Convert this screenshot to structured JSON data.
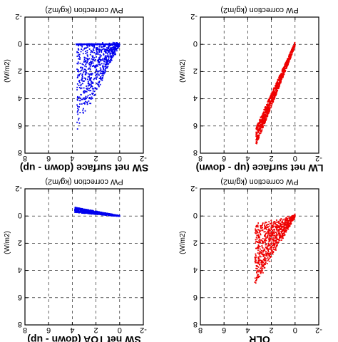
{
  "figure": {
    "flipped_upside_down": true,
    "colors": {
      "blue": "#0000ee",
      "red": "#ee0000",
      "axis": "#000000"
    }
  },
  "chart_data": [
    {
      "id": "sw-surface",
      "type": "scatter",
      "title": "SW net surface (down - up)",
      "xlabel": "PW correction (kg/m2)",
      "ylabel": "(W/m2)",
      "xlim": [
        -2,
        8
      ],
      "ylim": [
        -2,
        8
      ],
      "xticks": [
        "-2",
        "0",
        "2",
        "4",
        "6",
        "8"
      ],
      "yticks": [
        "-2",
        "0",
        "2",
        "4",
        "6",
        "8"
      ],
      "grid": true,
      "color": "#0000ee",
      "cloud": {
        "kind": "fan",
        "x_range": [
          0,
          3.6
        ],
        "slope_min": 0,
        "slope_max": 1.75,
        "n": 650,
        "baseline_x_max": 3.7,
        "baseline_n": 220
      }
    },
    {
      "id": "lw-surface",
      "type": "scatter",
      "title": "LW net surface (up - down)",
      "xlabel": "PW correction (kg/m2)",
      "ylabel": "(W/m2)",
      "xlim": [
        -2,
        8
      ],
      "ylim": [
        -2,
        8
      ],
      "xticks": [
        "-2",
        "0",
        "2",
        "4",
        "6",
        "8"
      ],
      "yticks": [
        "-2",
        "0",
        "2",
        "4",
        "6",
        "8"
      ],
      "grid": true,
      "color": "#ee0000",
      "cloud": {
        "kind": "band",
        "x_range": [
          0,
          3.3
        ],
        "slope": 2.05,
        "spread": 0.45,
        "n": 900
      }
    },
    {
      "id": "sw-toa",
      "type": "scatter",
      "title": "SW net TOA (down - up)",
      "xlabel": "PW correction (kg/m2)",
      "ylabel": "(W/m2)",
      "xlim": [
        -2,
        8
      ],
      "ylim": [
        -2,
        8
      ],
      "xticks": [
        "-2",
        "0",
        "2",
        "4",
        "6",
        "8"
      ],
      "yticks": [
        "-2",
        "0",
        "2",
        "4",
        "6",
        "8"
      ],
      "grid": true,
      "color": "#0000ee",
      "cloud": {
        "kind": "negative",
        "x_range": [
          0,
          3.8
        ],
        "slope": -0.12,
        "spread": 0.12,
        "n": 700
      }
    },
    {
      "id": "olr",
      "type": "scatter",
      "title": "OLR",
      "xlabel": "PW correction (kg/m2)",
      "ylabel": "(W/m2)",
      "xlim": [
        -2,
        8
      ],
      "ylim": [
        -2,
        8
      ],
      "xticks": [
        "-2",
        "0",
        "2",
        "4",
        "6",
        "8"
      ],
      "yticks": [
        "-2",
        "0",
        "2",
        "4",
        "6",
        "8"
      ],
      "grid": true,
      "color": "#ee0000",
      "cloud": {
        "kind": "fan",
        "x_range": [
          0,
          3.4
        ],
        "slope_min": 0.2,
        "slope_max": 1.5,
        "n": 800,
        "baseline_x_max": 0,
        "baseline_n": 0
      }
    }
  ]
}
